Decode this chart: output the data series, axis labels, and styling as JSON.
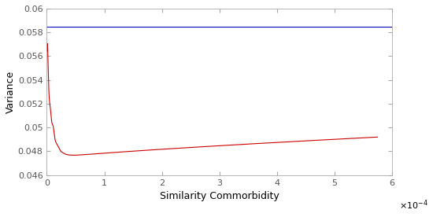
{
  "blue_line_y": 0.0585,
  "xlim": [
    0,
    0.00058
  ],
  "ylim": [
    0.046,
    0.06
  ],
  "xlabel": "Similarity Commorbidity",
  "ylabel": "Variance",
  "yticks": [
    0.046,
    0.048,
    0.05,
    0.052,
    0.054,
    0.056,
    0.058,
    0.06
  ],
  "xticks": [
    0,
    0.0001,
    0.0002,
    0.0003,
    0.0004,
    0.0005,
    0.0006
  ],
  "xtick_labels": [
    "0",
    "1",
    "2",
    "3",
    "4",
    "5",
    "6"
  ],
  "ytick_labels": [
    "0.046",
    "0.048",
    "0.05",
    "0.052",
    "0.054",
    "0.056",
    "0.058",
    "0.06"
  ],
  "blue_color": "#0000bb",
  "red_color": "#cc0000",
  "background_color": "#ffffff",
  "linewidth": 0.8,
  "spine_color": "#aaaaaa",
  "tick_color": "#555555",
  "label_fontsize": 9
}
